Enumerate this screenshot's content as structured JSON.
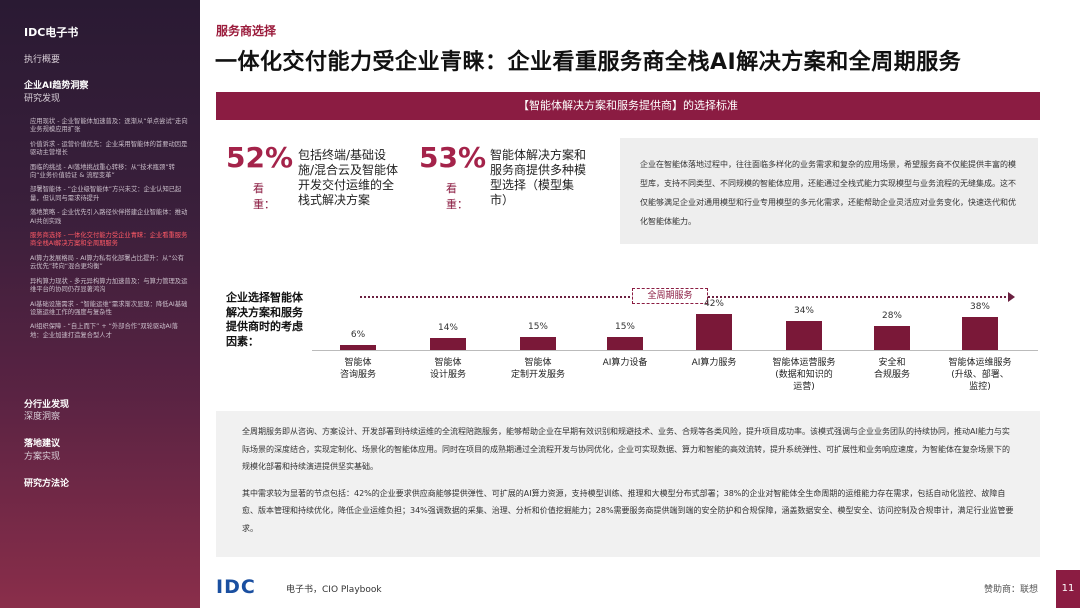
{
  "sidebar": {
    "brand": "IDC电子书",
    "sections": [
      {
        "label": "执行概要",
        "bold": false
      },
      {
        "label": "企业AI趋势洞察",
        "bold": true
      },
      {
        "label": "研究发现",
        "bold": false
      },
      {
        "label": "分行业发现",
        "bold": true
      },
      {
        "label": "深度洞察",
        "bold": false
      },
      {
        "label": "落地建议",
        "bold": true
      },
      {
        "label": "方案实现",
        "bold": false
      },
      {
        "label": "研究方法论",
        "bold": true
      }
    ],
    "items": [
      "应用现状 - 企业智能体加速普及：逐渐从“单点尝试”走向业务规模应用扩张",
      "价值诉求 - 运营价值优先：企业采用智能体的首要动因是驱动主营增长",
      "面临的挑战 - AI落地挑战重心转移：从“技术瓶颈”转向“业务价值验证 & 流程变革”",
      "部署智能体 - “企业级智能体”方兴未艾：企业认知已起量，但认同与需求待提升",
      "落地策略 - 企业优先引入路径伙伴搭建企业智能体：推动AI共创实践",
      "服务商选择 - 一体化交付能力受企业青睐：企业看重服务商全栈AI解决方案和全周期服务",
      "AI算力发展格局 - AI算力私有化部署占比提升：从“公有云优先”转向“混合更均衡”",
      "异构算力现状 - 多元异构算力加速普及：与算力管理及运维平台的协同仍存显著鸿沟",
      "AI基础设施需求 - “智能运维”需求渐次显现：降低AI基础设施运维工作的强度与复杂性",
      "AI组织保障 - “自上而下” + “外部合作”双轮驱动AI落地：企业加速打造复合型人才"
    ],
    "active_index": 5
  },
  "main": {
    "eyebrow": "服务商选择",
    "headline": "一体化交付能力受企业青睐：企业看重服务商全栈AI解决方案和全周期服务",
    "banner": "【智能体解决方案和服务提供商】的选择标准",
    "stat1": {
      "pct": "52%",
      "label": "看重：",
      "desc": "包括终端/基础设施/混合云及智能体开发交付运维的全栈式解决方案"
    },
    "stat2": {
      "pct": "53%",
      "label": "看重：",
      "desc": "智能体解决方案和服务商提供多种模型选择（模型集市）"
    },
    "info": "企业在智能体落地过程中，往往面临多样化的业务需求和复杂的应用场景，希望服务商不仅能提供丰富的模型库，支持不同类型、不同规模的智能体应用，还能通过全栈式能力实现模型与业务流程的无缝集成。这不仅能够满足企业对通用模型和行业专用模型的多元化需求，还能帮助企业灵活应对业务变化，快速迭代和优化智能体能力。",
    "factor_title": "企业选择智能体解决方案和服务提供商时的考虑因素：",
    "lifecycle_label": "全周期服务",
    "bottom_p1": "全周期服务即从咨询、方案设计、开发部署到持续运维的全流程陪跑服务，能够帮助企业在早期有效识别和规避技术、业务、合规等各类风险，提升项目成功率。该模式强调与企业业务团队的持续协同，推动AI能力与实际场景的深度结合，实现定制化、场景化的智能体应用。同时在项目的成熟期通过全流程开发与协同优化，企业可实现数据、算力和智能的高效流转，提升系统弹性、可扩展性和业务响应速度，为智能体在复杂场景下的规模化部署和持续演进提供坚实基础。",
    "bottom_p2": "其中需求较为显著的节点包括：42%的企业要求供应商能够提供弹性、可扩展的AI算力资源，支持模型训练、推理和大模型分布式部署；38%的企业对智能体全生命周期的运维能力存在需求，包括自动化监控、故障自愈、版本管理和持续优化，降低企业运维负担；34%强调数据的采集、治理、分析和价值挖掘能力；28%需要服务商提供端到端的安全防护和合规保障，涵盖数据安全、模型安全、访问控制及合规审计，满足行业监管要求。"
  },
  "chart_data": {
    "type": "bar",
    "categories": [
      "智能体\n咨询服务",
      "智能体\n设计服务",
      "智能体\n定制开发服务",
      "AI算力设备",
      "AI算力服务",
      "智能体运营服务\n(数据和知识的\n运营)",
      "安全和\n合规服务",
      "智能体运维服务\n(升级、部署、\n监控)"
    ],
    "values": [
      6,
      14,
      15,
      15,
      42,
      34,
      28,
      38
    ],
    "value_labels": [
      "6%",
      "14%",
      "15%",
      "15%",
      "42%",
      "34%",
      "28%",
      "38%"
    ],
    "ylim": [
      0,
      42
    ]
  },
  "footer": {
    "logo": "IDC",
    "text": "电子书，CIO Playbook",
    "sponsor": "赞助商：联想",
    "page": "11"
  },
  "colors": {
    "accent": "#8b1c42",
    "bar": "#7a1838",
    "logo": "#1a4fa0"
  }
}
